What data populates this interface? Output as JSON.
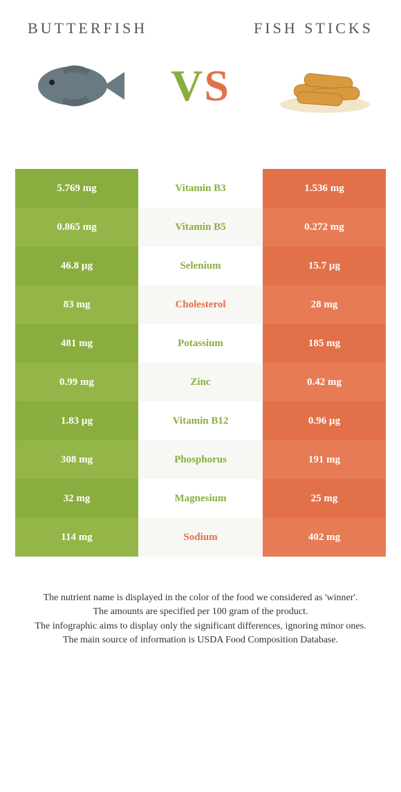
{
  "header": {
    "left": "BUTTERFISH",
    "right": "FISH STICKS",
    "vs_v": "V",
    "vs_s": "S"
  },
  "colors": {
    "green": "#8aad3f",
    "greenAlt": "#94b548",
    "orange": "#e2714a",
    "orangeAlt": "#e67b55",
    "midAlt": "#f7f7f3"
  },
  "rows": [
    {
      "left": "5.769 mg",
      "mid": "Vitamin B3",
      "right": "1.536 mg",
      "winner": "left"
    },
    {
      "left": "0.865 mg",
      "mid": "Vitamin B5",
      "right": "0.272 mg",
      "winner": "left"
    },
    {
      "left": "46.8 µg",
      "mid": "Selenium",
      "right": "15.7 µg",
      "winner": "left"
    },
    {
      "left": "83 mg",
      "mid": "Cholesterol",
      "right": "28 mg",
      "winner": "right"
    },
    {
      "left": "481 mg",
      "mid": "Potassium",
      "right": "185 mg",
      "winner": "left"
    },
    {
      "left": "0.99 mg",
      "mid": "Zinc",
      "right": "0.42 mg",
      "winner": "left"
    },
    {
      "left": "1.83 µg",
      "mid": "Vitamin B12",
      "right": "0.96 µg",
      "winner": "left"
    },
    {
      "left": "308 mg",
      "mid": "Phosphorus",
      "right": "191 mg",
      "winner": "left"
    },
    {
      "left": "32 mg",
      "mid": "Magnesium",
      "right": "25 mg",
      "winner": "left"
    },
    {
      "left": "114 mg",
      "mid": "Sodium",
      "right": "402 mg",
      "winner": "right"
    }
  ],
  "footer": {
    "line1": "The nutrient name is displayed in the color of the food we considered as 'winner'.",
    "line2": "The amounts are specified per 100 gram of the product.",
    "line3": "The infographic aims to display only the significant differences, ignoring minor ones.",
    "line4": "The main source of information is USDA Food Composition Database."
  }
}
